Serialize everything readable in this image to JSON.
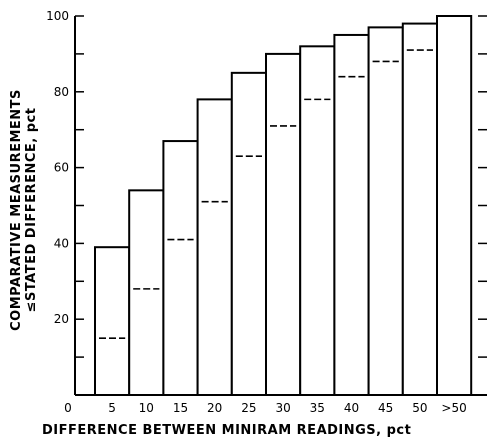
{
  "chart_data": {
    "type": "bar",
    "categories": [
      "5",
      "10",
      "15",
      "20",
      "25",
      "30",
      "35",
      "40",
      "45",
      "50",
      ">50"
    ],
    "x_origin_label": "0",
    "series": [
      {
        "values": [
          39,
          54,
          67,
          78,
          85,
          90,
          92,
          95,
          97,
          98,
          100
        ],
        "style": "solid-outline"
      },
      {
        "values": [
          15,
          28,
          41,
          51,
          63,
          71,
          78,
          84,
          88,
          91,
          100
        ],
        "style": "dashed"
      }
    ],
    "xlabel": "DIFFERENCE BETWEEN MINIRAM READINGS, pct",
    "ylabel_line1": "COMPARATIVE MEASUREMENTS",
    "ylabel_line2": "≤STATED DIFFERENCE, pct",
    "ylim": [
      0,
      100
    ],
    "yticks": [
      20,
      40,
      60,
      80,
      100
    ],
    "ytick_labels": [
      "20",
      "40",
      "60",
      "80",
      "100"
    ],
    "grid": false,
    "title": ""
  }
}
